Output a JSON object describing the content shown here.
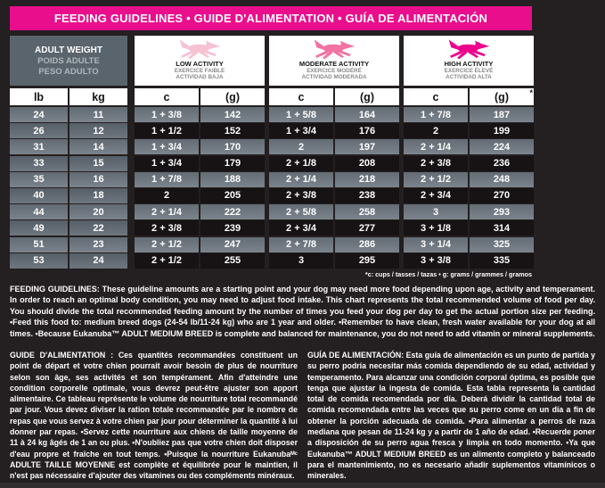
{
  "header": {
    "title": "FEEDING GUIDELINES • GUIDE D'ALIMENTATION • GUÍA DE ALIMENTACIÓN",
    "bar_color": "#E90E8B"
  },
  "table": {
    "weight_header": {
      "line1": "ADULT WEIGHT",
      "line2": "POIDS ADULTE",
      "line3": "PESO ADULTO"
    },
    "activities": [
      {
        "name": "LOW ACTIVITY",
        "line2": "EXERCICE FAIBLE",
        "line3": "ACTIVIDAD BAJA",
        "dog_color": "#F6C2D2"
      },
      {
        "name": "MODERATE ACTIVITY",
        "line2": "EXERCICE MODÉRÉ",
        "line3": "ACTIVIDAD MODERADA",
        "dog_color": "#F172A3"
      },
      {
        "name": "HIGH ACTIVITY",
        "line2": "EXERCICE ÉLEVÉ",
        "line3": "ACTIVIDAD ALTA",
        "dog_color": "#EC008C"
      }
    ],
    "col_heads": [
      "lb",
      "kg",
      "c",
      "(g)",
      "c",
      "(g)",
      "c",
      "(g)"
    ],
    "asterisk": "*",
    "rows": [
      [
        "24",
        "11",
        "1 + 3/8",
        "142",
        "1 + 5/8",
        "164",
        "1 + 7/8",
        "187"
      ],
      [
        "26",
        "12",
        "1 + 1/2",
        "152",
        "1 + 3/4",
        "176",
        "2",
        "199"
      ],
      [
        "31",
        "14",
        "1 + 3/4",
        "170",
        "2",
        "197",
        "2 + 1/4",
        "224"
      ],
      [
        "33",
        "15",
        "1 + 3/4",
        "179",
        "2 + 1/8",
        "208",
        "2 + 3/8",
        "236"
      ],
      [
        "35",
        "16",
        "1 + 7/8",
        "188",
        "2 + 1/4",
        "218",
        "2 + 1/2",
        "248"
      ],
      [
        "40",
        "18",
        "2",
        "205",
        "2 + 3/8",
        "238",
        "2 + 3/4",
        "270"
      ],
      [
        "44",
        "20",
        "2 + 1/4",
        "222",
        "2 + 5/8",
        "258",
        "3",
        "293"
      ],
      [
        "49",
        "22",
        "2 + 3/8",
        "239",
        "2 + 3/4",
        "277",
        "3 + 1/8",
        "314"
      ],
      [
        "51",
        "23",
        "2 + 1/2",
        "247",
        "2 + 7/8",
        "286",
        "3 + 1/4",
        "325"
      ],
      [
        "53",
        "24",
        "2 + 1/2",
        "255",
        "3",
        "295",
        "3 + 3/8",
        "335"
      ]
    ],
    "footnote": "*c: cups / tasses / tazas  •  g: grams / grammes / gramos"
  },
  "paragraphs": {
    "english": "FEEDING GUIDELINES: These guideline amounts are a starting point and your dog may need more food depending upon age, activity and temperament. In order to reach an optimal body condition, you may need to adjust food intake. This chart represents the total recommended volume of food per day. You should divide the total recommended feeding amount by the number of times you feed your dog per day to get the actual portion size per feeding. •Feed this food to: medium breed dogs (24-54 lb/11-24 kg) who are 1 year and older. •Remember to have clean, fresh water available for your dog at all times. •Because Eukanuba™ ADULT MEDIUM BREED is complete and balanced for maintenance, you do not need to add vitamin or mineral supplements.",
    "french": "GUIDE D'ALIMENTATION : Ces quantités recommandées constituent un point de départ et votre chien pourrait avoir besoin de plus de nourriture selon son âge, ses activités et son tempérament. Afin d'atteindre une condition corporelle optimale, vous devrez peut-être ajuster son apport alimentaire. Ce tableau représente le volume de nourriture total recommandé par jour. Vous devez diviser la ration totale recommandée par le nombre de repas que vous servez à votre chien par jour pour déterminer la quantité à lui donner par repas. •Servez cette nourriture aux chiens de taille moyenne de 11 à 24 kg âgés de 1 an ou plus. •N'oubliez pas que votre chien doit disposer d'eau propre et fraîche en tout temps. •Puisque la nourriture Eukanubaᴹᶜ ADULTE TAILLE MOYENNE est complète et équilibrée pour le maintien, il n'est pas nécessaire d'ajouter des vitamines ou des compléments minéraux.",
    "spanish": "GUÍA DE ALIMENTACIÓN: Esta guía de alimentación es un punto de partida y su perro podría necesitar más comida dependiendo de su edad, actividad y temperamento. Para alcanzar una condición corporal óptima, es posible que tenga que ajustar la ingesta de comida. Esta tabla representa la cantidad total de comida recomendada por día. Deberá dividir la cantidad total de comida recomendada entre las veces que su perro come en un día a fin de obtener la porción adecuada de comida. •Para alimentar a perros de raza mediana que pesan de 11-24 kg y a partir de 1 año de edad. •Recuerde poner a disposición de su perro agua fresca y limpia en todo momento. •Ya que Eukanuba™ ADULT MEDIUM BREED es un alimento completo y balanceado para el mantenimiento, no es necesario añadir suplementos vitamínicos o minerales."
  }
}
